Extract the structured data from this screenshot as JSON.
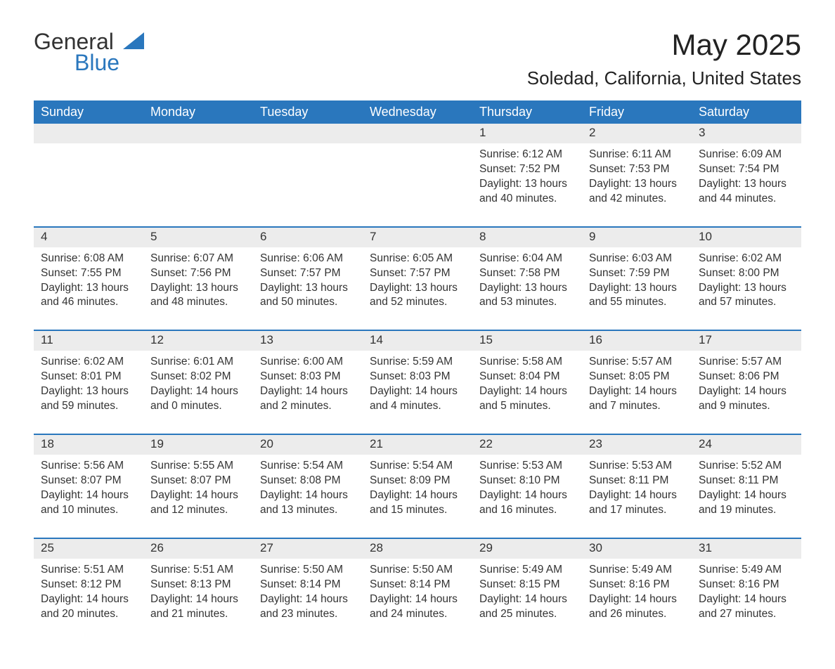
{
  "brand": {
    "word1": "General",
    "word2": "Blue",
    "triangle_color": "#2a77bd"
  },
  "title": "May 2025",
  "location": "Soledad, California, United States",
  "colors": {
    "header_bg": "#2a77bd",
    "header_text": "#ffffff",
    "daynum_bg": "#ececec",
    "text": "#333333",
    "page_bg": "#ffffff"
  },
  "weekdays": [
    "Sunday",
    "Monday",
    "Tuesday",
    "Wednesday",
    "Thursday",
    "Friday",
    "Saturday"
  ],
  "weeks": [
    [
      null,
      null,
      null,
      null,
      {
        "n": "1",
        "sunrise": "6:12 AM",
        "sunset": "7:52 PM",
        "daylight": "13 hours and 40 minutes."
      },
      {
        "n": "2",
        "sunrise": "6:11 AM",
        "sunset": "7:53 PM",
        "daylight": "13 hours and 42 minutes."
      },
      {
        "n": "3",
        "sunrise": "6:09 AM",
        "sunset": "7:54 PM",
        "daylight": "13 hours and 44 minutes."
      }
    ],
    [
      {
        "n": "4",
        "sunrise": "6:08 AM",
        "sunset": "7:55 PM",
        "daylight": "13 hours and 46 minutes."
      },
      {
        "n": "5",
        "sunrise": "6:07 AM",
        "sunset": "7:56 PM",
        "daylight": "13 hours and 48 minutes."
      },
      {
        "n": "6",
        "sunrise": "6:06 AM",
        "sunset": "7:57 PM",
        "daylight": "13 hours and 50 minutes."
      },
      {
        "n": "7",
        "sunrise": "6:05 AM",
        "sunset": "7:57 PM",
        "daylight": "13 hours and 52 minutes."
      },
      {
        "n": "8",
        "sunrise": "6:04 AM",
        "sunset": "7:58 PM",
        "daylight": "13 hours and 53 minutes."
      },
      {
        "n": "9",
        "sunrise": "6:03 AM",
        "sunset": "7:59 PM",
        "daylight": "13 hours and 55 minutes."
      },
      {
        "n": "10",
        "sunrise": "6:02 AM",
        "sunset": "8:00 PM",
        "daylight": "13 hours and 57 minutes."
      }
    ],
    [
      {
        "n": "11",
        "sunrise": "6:02 AM",
        "sunset": "8:01 PM",
        "daylight": "13 hours and 59 minutes."
      },
      {
        "n": "12",
        "sunrise": "6:01 AM",
        "sunset": "8:02 PM",
        "daylight": "14 hours and 0 minutes."
      },
      {
        "n": "13",
        "sunrise": "6:00 AM",
        "sunset": "8:03 PM",
        "daylight": "14 hours and 2 minutes."
      },
      {
        "n": "14",
        "sunrise": "5:59 AM",
        "sunset": "8:03 PM",
        "daylight": "14 hours and 4 minutes."
      },
      {
        "n": "15",
        "sunrise": "5:58 AM",
        "sunset": "8:04 PM",
        "daylight": "14 hours and 5 minutes."
      },
      {
        "n": "16",
        "sunrise": "5:57 AM",
        "sunset": "8:05 PM",
        "daylight": "14 hours and 7 minutes."
      },
      {
        "n": "17",
        "sunrise": "5:57 AM",
        "sunset": "8:06 PM",
        "daylight": "14 hours and 9 minutes."
      }
    ],
    [
      {
        "n": "18",
        "sunrise": "5:56 AM",
        "sunset": "8:07 PM",
        "daylight": "14 hours and 10 minutes."
      },
      {
        "n": "19",
        "sunrise": "5:55 AM",
        "sunset": "8:07 PM",
        "daylight": "14 hours and 12 minutes."
      },
      {
        "n": "20",
        "sunrise": "5:54 AM",
        "sunset": "8:08 PM",
        "daylight": "14 hours and 13 minutes."
      },
      {
        "n": "21",
        "sunrise": "5:54 AM",
        "sunset": "8:09 PM",
        "daylight": "14 hours and 15 minutes."
      },
      {
        "n": "22",
        "sunrise": "5:53 AM",
        "sunset": "8:10 PM",
        "daylight": "14 hours and 16 minutes."
      },
      {
        "n": "23",
        "sunrise": "5:53 AM",
        "sunset": "8:11 PM",
        "daylight": "14 hours and 17 minutes."
      },
      {
        "n": "24",
        "sunrise": "5:52 AM",
        "sunset": "8:11 PM",
        "daylight": "14 hours and 19 minutes."
      }
    ],
    [
      {
        "n": "25",
        "sunrise": "5:51 AM",
        "sunset": "8:12 PM",
        "daylight": "14 hours and 20 minutes."
      },
      {
        "n": "26",
        "sunrise": "5:51 AM",
        "sunset": "8:13 PM",
        "daylight": "14 hours and 21 minutes."
      },
      {
        "n": "27",
        "sunrise": "5:50 AM",
        "sunset": "8:14 PM",
        "daylight": "14 hours and 23 minutes."
      },
      {
        "n": "28",
        "sunrise": "5:50 AM",
        "sunset": "8:14 PM",
        "daylight": "14 hours and 24 minutes."
      },
      {
        "n": "29",
        "sunrise": "5:49 AM",
        "sunset": "8:15 PM",
        "daylight": "14 hours and 25 minutes."
      },
      {
        "n": "30",
        "sunrise": "5:49 AM",
        "sunset": "8:16 PM",
        "daylight": "14 hours and 26 minutes."
      },
      {
        "n": "31",
        "sunrise": "5:49 AM",
        "sunset": "8:16 PM",
        "daylight": "14 hours and 27 minutes."
      }
    ]
  ],
  "labels": {
    "sunrise": "Sunrise:",
    "sunset": "Sunset:",
    "daylight": "Daylight:"
  }
}
